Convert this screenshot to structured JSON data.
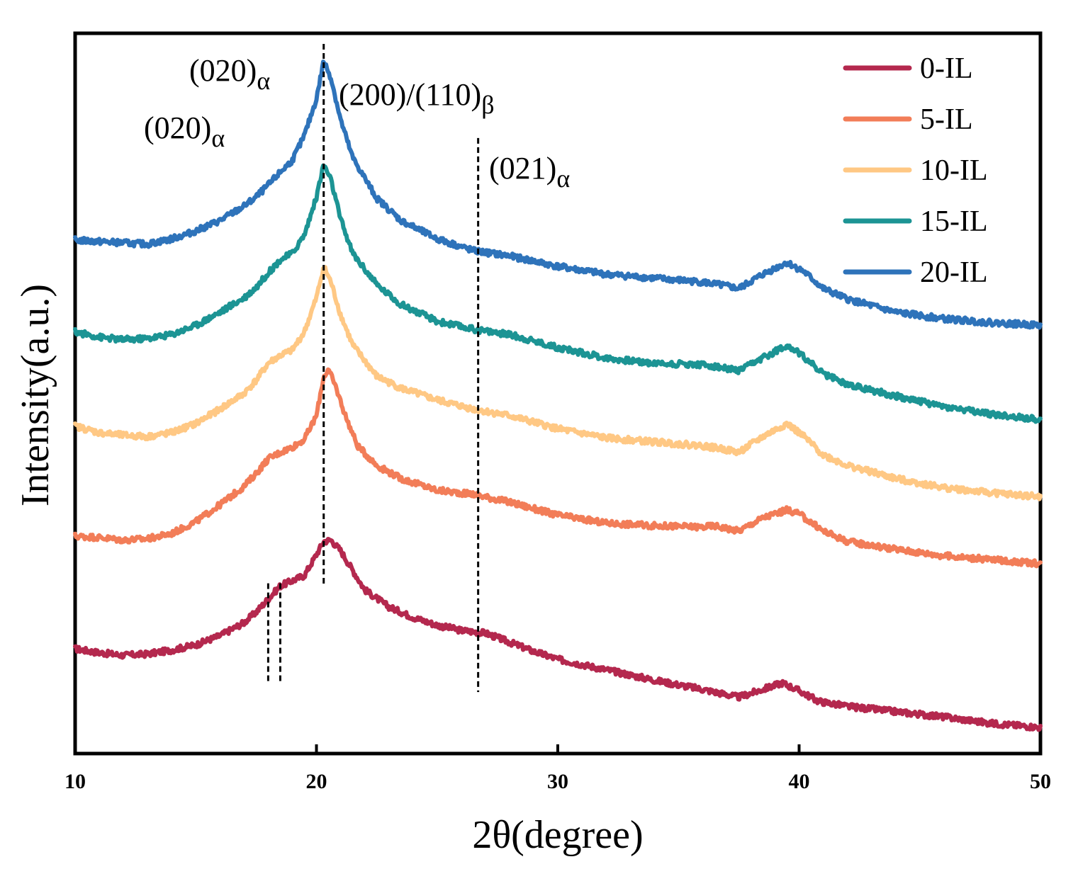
{
  "chart_data": {
    "type": "line",
    "xlabel": "2θ(degree)",
    "ylabel": "Intensity(a.u.)",
    "xlim": [
      10,
      50
    ],
    "x_ticks": [
      "10",
      "20",
      "30",
      "40",
      "50"
    ],
    "y_ticks": [],
    "grid": false,
    "legend_position": "top-right",
    "annotations": [
      {
        "id": "a1",
        "text": "(020)",
        "sub": "α",
        "x_line": 18.0
      },
      {
        "id": "a2",
        "text": "(020)",
        "sub": "α",
        "x_line": 18.5
      },
      {
        "id": "a3",
        "text": "(200)/(110)",
        "sub": "β",
        "x_line": 20.3
      },
      {
        "id": "a4",
        "text": "(021)",
        "sub": "α",
        "x_line": 26.7
      }
    ],
    "series": [
      {
        "name": "0-IL",
        "color": "#B4284E",
        "x": [
          10,
          11,
          12,
          13,
          14,
          15,
          16,
          17,
          17.5,
          18,
          18.5,
          19,
          19.5,
          20,
          20.3,
          20.6,
          21,
          21.5,
          22,
          23,
          24,
          25,
          26,
          27,
          28,
          29,
          30,
          32,
          34,
          36,
          37.5,
          38.5,
          39.3,
          40,
          40.8,
          42,
          44,
          46,
          48,
          50
        ],
        "y": [
          0.8,
          0.77,
          0.75,
          0.76,
          0.79,
          0.83,
          0.9,
          1.0,
          1.08,
          1.18,
          1.28,
          1.32,
          1.36,
          1.52,
          1.62,
          1.63,
          1.55,
          1.4,
          1.25,
          1.12,
          1.04,
          0.98,
          0.94,
          0.92,
          0.85,
          0.78,
          0.72,
          0.64,
          0.56,
          0.49,
          0.43,
          0.49,
          0.54,
          0.48,
          0.4,
          0.36,
          0.32,
          0.28,
          0.23,
          0.2
        ]
      },
      {
        "name": "5-IL",
        "color": "#F27D58",
        "x": [
          10,
          11,
          12,
          13,
          14,
          15,
          16,
          17,
          17.5,
          18,
          18.5,
          19,
          19.5,
          20,
          20.3,
          20.5,
          20.8,
          21.2,
          21.7,
          22.5,
          23.5,
          25,
          26.5,
          28,
          30,
          32,
          34,
          36,
          36.5,
          37.5,
          38.5,
          39.5,
          40,
          41,
          42,
          44,
          46,
          48,
          50
        ],
        "y": [
          1.66,
          1.65,
          1.63,
          1.64,
          1.68,
          1.77,
          1.9,
          2.04,
          2.14,
          2.25,
          2.3,
          2.34,
          2.4,
          2.58,
          2.88,
          2.93,
          2.8,
          2.58,
          2.35,
          2.2,
          2.1,
          2.01,
          1.98,
          1.92,
          1.82,
          1.76,
          1.74,
          1.73,
          1.74,
          1.7,
          1.8,
          1.86,
          1.83,
          1.7,
          1.62,
          1.56,
          1.51,
          1.48,
          1.45
        ]
      },
      {
        "name": "10-IL",
        "color": "#FFC884",
        "x": [
          10,
          11,
          12,
          13,
          14,
          15,
          16,
          17,
          17.5,
          18,
          18.5,
          19,
          19.5,
          20,
          20.3,
          20.6,
          21,
          21.5,
          22.5,
          23.5,
          25,
          26.5,
          28,
          30,
          32,
          34,
          36,
          37,
          37.5,
          38.5,
          39.5,
          40.2,
          41,
          42,
          44,
          46,
          48,
          50
        ],
        "y": [
          2.5,
          2.45,
          2.43,
          2.42,
          2.45,
          2.52,
          2.63,
          2.75,
          2.85,
          2.98,
          3.04,
          3.08,
          3.22,
          3.48,
          3.72,
          3.6,
          3.35,
          3.12,
          2.88,
          2.79,
          2.7,
          2.63,
          2.58,
          2.48,
          2.41,
          2.38,
          2.35,
          2.32,
          2.3,
          2.42,
          2.52,
          2.42,
          2.28,
          2.2,
          2.1,
          2.03,
          1.99,
          1.96
        ]
      },
      {
        "name": "15-IL",
        "color": "#1C9494",
        "x": [
          10,
          11,
          12,
          13,
          14,
          15,
          16,
          17,
          17.5,
          18,
          18.5,
          19,
          19.5,
          20,
          20.3,
          20.6,
          21,
          21.5,
          22.5,
          23.5,
          25,
          26.5,
          28,
          30,
          32,
          34,
          36,
          37,
          37.5,
          38.5,
          39.5,
          40.2,
          41,
          42,
          44,
          46,
          48,
          50
        ],
        "y": [
          3.22,
          3.18,
          3.16,
          3.17,
          3.2,
          3.27,
          3.37,
          3.48,
          3.56,
          3.67,
          3.77,
          3.82,
          3.96,
          4.25,
          4.5,
          4.38,
          4.08,
          3.82,
          3.58,
          3.43,
          3.3,
          3.24,
          3.2,
          3.1,
          3.02,
          2.98,
          2.97,
          2.94,
          2.92,
          3.02,
          3.12,
          3.03,
          2.9,
          2.82,
          2.73,
          2.65,
          2.59,
          2.55
        ]
      },
      {
        "name": "20-IL",
        "color": "#2E73BA",
        "x": [
          10,
          11,
          12,
          13,
          14,
          15,
          16,
          17,
          17.5,
          18,
          18.5,
          19,
          19.5,
          20,
          20.3,
          20.6,
          21,
          21.5,
          22.5,
          23.5,
          25,
          26.5,
          28,
          30,
          32,
          34,
          36,
          37,
          37.5,
          38.5,
          39.5,
          40.2,
          41,
          42,
          44,
          46,
          48,
          50
        ],
        "y": [
          3.92,
          3.91,
          3.9,
          3.89,
          3.93,
          3.99,
          4.07,
          4.18,
          4.25,
          4.34,
          4.44,
          4.53,
          4.72,
          5.0,
          5.29,
          5.16,
          4.84,
          4.55,
          4.24,
          4.07,
          3.93,
          3.84,
          3.8,
          3.72,
          3.66,
          3.63,
          3.6,
          3.57,
          3.55,
          3.66,
          3.75,
          3.68,
          3.55,
          3.47,
          3.37,
          3.32,
          3.29,
          3.27
        ]
      }
    ]
  }
}
